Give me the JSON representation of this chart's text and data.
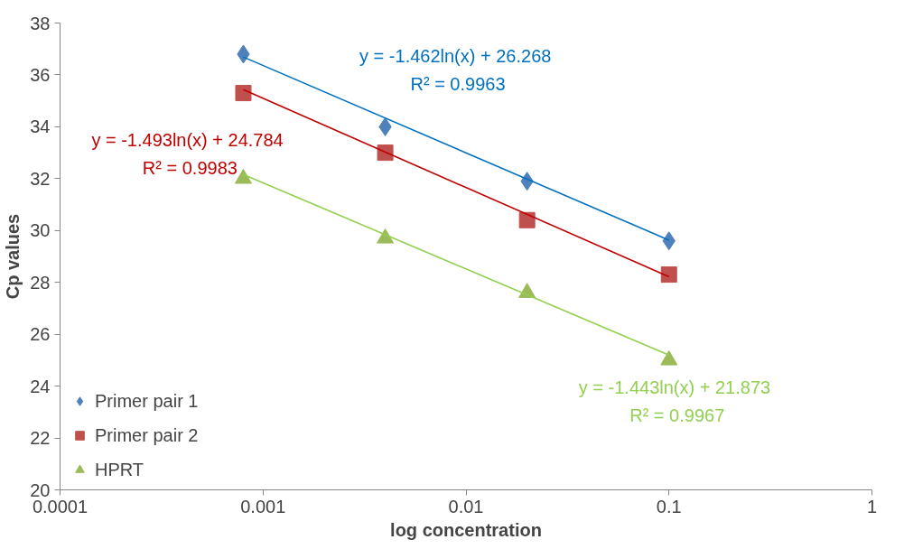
{
  "chart_data": {
    "type": "scatter",
    "xlabel": "log concentration",
    "ylabel": "Cp values",
    "log": "x",
    "xlim": [
      0.0001,
      1
    ],
    "xticks": [
      0.0001,
      0.001,
      0.01,
      0.1,
      1
    ],
    "ylim": [
      20,
      38
    ],
    "yticks": [
      20,
      22,
      24,
      26,
      28,
      30,
      32,
      34,
      36,
      38
    ],
    "grid": false,
    "legend": "bottom left",
    "series": [
      {
        "name": "Primer pair 1",
        "color": "#4f81bd",
        "marker": "diamond",
        "x": [
          0.0008,
          0.004,
          0.02,
          0.1
        ],
        "values": [
          36.8,
          34.0,
          31.9,
          29.6
        ]
      },
      {
        "name": "Primer pair 2",
        "color": "#c0504d",
        "marker": "square",
        "x": [
          0.0008,
          0.004,
          0.02,
          0.1
        ],
        "values": [
          35.3,
          33.0,
          30.4,
          28.3
        ]
      },
      {
        "name": "HPRT",
        "color": "#9bbb59",
        "marker": "triangle",
        "x": [
          0.0008,
          0.004,
          0.02,
          0.1
        ],
        "values": [
          32.0,
          29.7,
          27.6,
          25.0
        ]
      },
      {
        "type": "line",
        "color": "#0070c0",
        "x": [
          0.0008,
          0.1
        ],
        "values": [
          36.69,
          29.63
        ]
      },
      {
        "type": "line",
        "color": "#c00000",
        "x": [
          0.0008,
          0.1
        ],
        "values": [
          35.43,
          28.22
        ]
      },
      {
        "type": "line",
        "color": "#92d050",
        "x": [
          0.0008,
          0.1
        ],
        "values": [
          32.16,
          25.2
        ]
      }
    ],
    "annotations": [
      "y = -1.462ln(x)  + 26.268",
      "R² = 0.9963",
      "y = -1.493ln(x)  + 24.784",
      "R² = 0.9983",
      "y = -1.443ln(x)  + 21.873",
      "R² = 0.9967"
    ]
  }
}
